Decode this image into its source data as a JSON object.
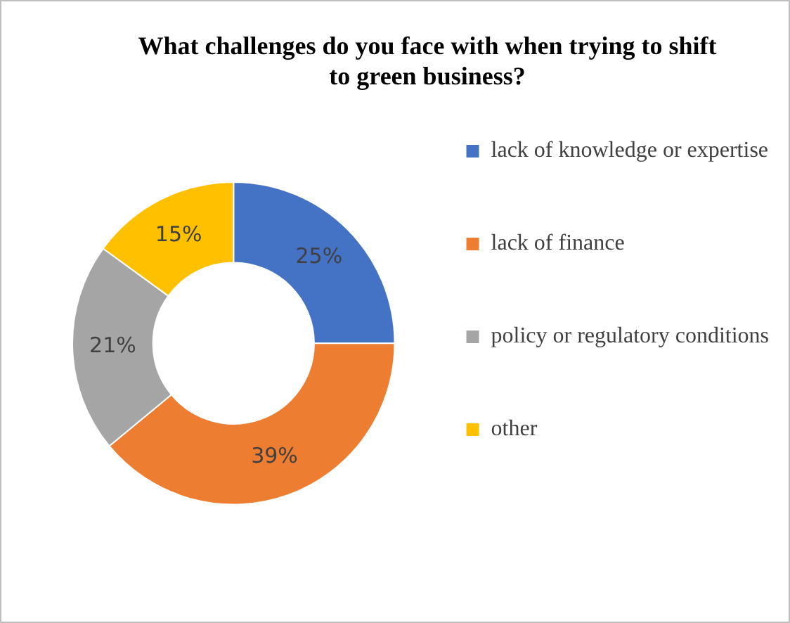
{
  "chart_data": {
    "type": "donut",
    "title": "What challenges do you face with when trying to shift to green business?",
    "categories": [
      "lack of knowledge or expertise",
      "lack of finance",
      "policy or regulatory conditions",
      "other"
    ],
    "values": [
      25,
      39,
      21,
      15
    ],
    "colors": [
      "#4472c4",
      "#ed7d31",
      "#a5a5a5",
      "#ffc000"
    ],
    "value_labels": [
      "25%",
      "39%",
      "21%",
      "15%"
    ],
    "legend": "right"
  }
}
